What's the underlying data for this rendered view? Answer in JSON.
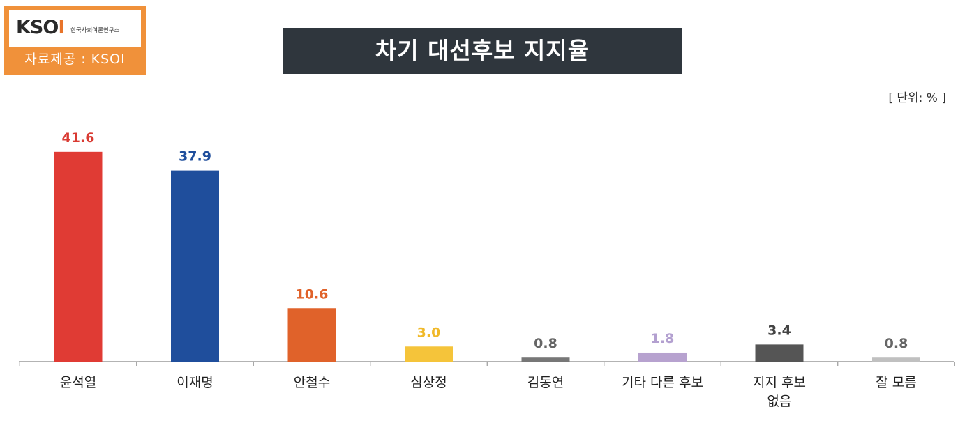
{
  "logo": {
    "word_main": "KSO",
    "word_accent": "I",
    "subtitle": "한국사회여론연구소",
    "source": "자료제공 : KSOI"
  },
  "title": "차기 대선후보 지지율",
  "unit": "[ 단위: % ]",
  "colors": {
    "logo_orange": "#f0913a",
    "title_bg": "#2f363d"
  },
  "chart_data": {
    "type": "bar",
    "title": "차기 대선후보 지지율",
    "xlabel": "",
    "ylabel": "",
    "grid": false,
    "categories": [
      "윤석열",
      "이재명",
      "안철수",
      "심상정",
      "김동연",
      "기타 다른 후보",
      "지지 후보\n없음",
      "잘 모름"
    ],
    "values": [
      41.6,
      37.9,
      10.6,
      3.0,
      0.8,
      1.8,
      3.4,
      0.8
    ],
    "value_labels": [
      "41.6",
      "37.9",
      "10.6",
      "3.0",
      "0.8",
      "1.8",
      "3.4",
      "0.8"
    ],
    "bar_colors": [
      "#e03b34",
      "#1f4e9c",
      "#e0622a",
      "#f5c43a",
      "#777777",
      "#b7a2cf",
      "#555555",
      "#c0c0c0"
    ],
    "label_colors": [
      "#d93a32",
      "#1f4e9c",
      "#e0622a",
      "#f0b92a",
      "#666666",
      "#b3a0d0",
      "#444444",
      "#666666"
    ]
  }
}
